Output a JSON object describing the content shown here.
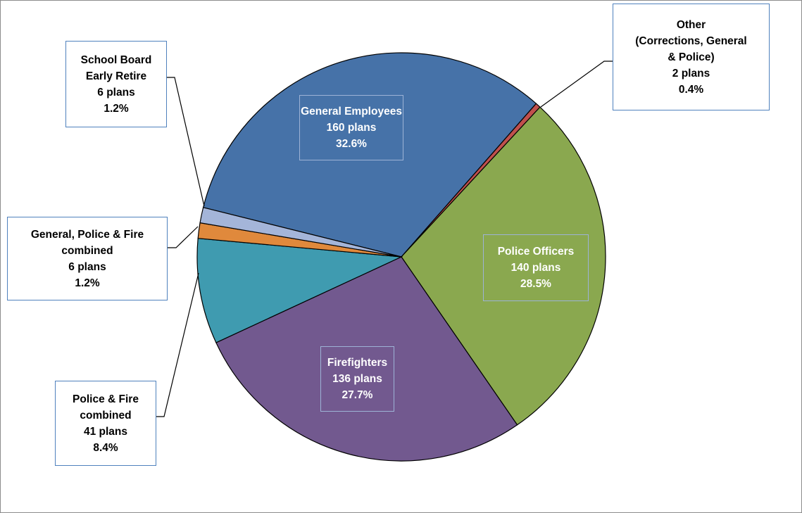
{
  "chart_data": {
    "type": "pie",
    "categories": [
      "General Employees",
      "Other\n(Corrections, General\n& Police)",
      "Police Officers",
      "Firefighters",
      "Police & Fire\ncombined",
      "General, Police & Fire\ncombined",
      "School Board\nEarly Retire"
    ],
    "values": [
      160,
      2,
      140,
      136,
      41,
      6,
      6
    ],
    "value_labels": [
      "160 plans",
      "2 plans",
      "140 plans",
      "136 plans",
      "41 plans",
      "6 plans",
      "6 plans"
    ],
    "percents": [
      32.6,
      0.4,
      28.5,
      27.7,
      8.4,
      1.2,
      1.2
    ],
    "percent_labels": [
      "32.6%",
      "0.4%",
      "28.5%",
      "27.7%",
      "8.4%",
      "1.2%",
      "1.2%"
    ],
    "colors": [
      "#4672a8",
      "#c0504d",
      "#8aa84f",
      "#72598f",
      "#3f9bb0",
      "#e0893c",
      "#a4b5d9"
    ]
  }
}
